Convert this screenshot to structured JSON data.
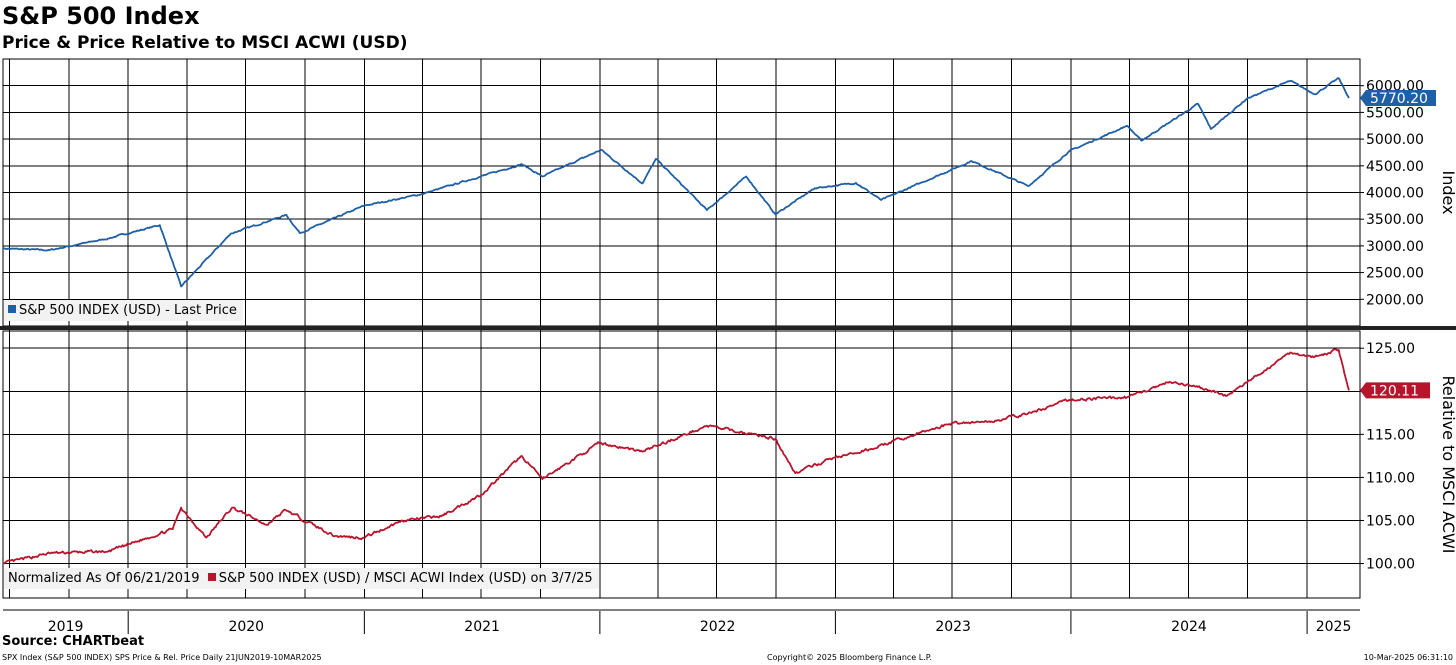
{
  "header": {
    "title": "S&P 500 Index",
    "subtitle": "Price & Price Relative to MSCI ACWI (USD)"
  },
  "footer": {
    "source": "Source: CHARTbeat",
    "left": "SPX Index (S&P 500 INDEX) SPS Price & Rel. Price  Daily 21JUN2019-10MAR2025",
    "center": "Copyright© 2025 Bloomberg Finance L.P.",
    "right": "10-Mar-2025 06:31:10"
  },
  "colors": {
    "price": "#1f5fa5",
    "relative": "#b8142b",
    "grid": "#000000",
    "legend_bg": "#f2f2f2"
  },
  "chart_data": [
    {
      "type": "line",
      "panel": "top",
      "ylabel": "Index",
      "ylim": [
        1500,
        6500
      ],
      "yticks": [
        "2000.00",
        "2500.00",
        "3000.00",
        "3500.00",
        "4000.00",
        "4500.00",
        "5000.00",
        "5500.00",
        "6000.00"
      ],
      "last_value": "5770.20",
      "legend": "S&P 500 INDEX (USD) - Last Price",
      "x": [
        "2019-06-21",
        "2019-09-01",
        "2019-12-01",
        "2020-02-19",
        "2020-03-23",
        "2020-06-08",
        "2020-09-02",
        "2020-09-23",
        "2020-12-31",
        "2021-03-31",
        "2021-06-30",
        "2021-09-02",
        "2021-10-04",
        "2022-01-03",
        "2022-03-08",
        "2022-03-29",
        "2022-06-16",
        "2022-08-16",
        "2022-09-30",
        "2022-11-30",
        "2023-02-02",
        "2023-03-13",
        "2023-07-31",
        "2023-10-27",
        "2023-12-29",
        "2024-03-28",
        "2024-04-19",
        "2024-07-16",
        "2024-08-05",
        "2024-09-30",
        "2024-12-06",
        "2025-01-13",
        "2025-02-19",
        "2025-03-07"
      ],
      "values": [
        2950,
        2920,
        3140,
        3390,
        2240,
        3230,
        3580,
        3240,
        3750,
        3970,
        4300,
        4530,
        4300,
        4800,
        4170,
        4630,
        3670,
        4300,
        3590,
        4080,
        4180,
        3860,
        4590,
        4120,
        4770,
        5250,
        4970,
        5660,
        5190,
        5760,
        6090,
        5840,
        6140,
        5770
      ]
    },
    {
      "type": "line",
      "panel": "bottom",
      "ylabel": "Relative to MSCI ACWI",
      "ylim": [
        96,
        127
      ],
      "yticks": [
        "100.00",
        "105.00",
        "110.00",
        "115.00",
        "120.00",
        "125.00"
      ],
      "last_value": "120.11",
      "normalized_note": "Normalized As Of 06/21/2019",
      "legend": "S&P 500 INDEX (USD) / MSCI ACWI Index (USD) on 3/7/25",
      "x": [
        "2019-06-21",
        "2019-09-01",
        "2019-12-01",
        "2020-03-10",
        "2020-03-23",
        "2020-05-01",
        "2020-06-10",
        "2020-08-03",
        "2020-09-01",
        "2020-11-16",
        "2020-12-31",
        "2021-03-01",
        "2021-04-30",
        "2021-07-01",
        "2021-09-02",
        "2021-10-04",
        "2021-12-31",
        "2022-03-08",
        "2022-06-16",
        "2022-09-30",
        "2022-10-31",
        "2022-12-30",
        "2023-02-02",
        "2023-06-30",
        "2023-08-31",
        "2023-11-01",
        "2023-12-29",
        "2024-03-28",
        "2024-05-31",
        "2024-07-16",
        "2024-08-30",
        "2024-09-30",
        "2024-12-06",
        "2025-01-13",
        "2025-02-19",
        "2025-03-07"
      ],
      "values": [
        100.0,
        101.2,
        101.4,
        104.0,
        106.5,
        103.0,
        106.5,
        104.5,
        106.2,
        103.2,
        103.0,
        105.0,
        105.5,
        108.0,
        112.5,
        109.8,
        114.0,
        113.0,
        116.0,
        114.5,
        110.5,
        112.3,
        112.8,
        116.3,
        116.5,
        117.5,
        119.0,
        119.3,
        121.0,
        120.5,
        119.5,
        121.0,
        124.5,
        124.0,
        124.8,
        120.1
      ]
    }
  ],
  "x_axis": {
    "years": [
      "2019",
      "2020",
      "2021",
      "2022",
      "2023",
      "2024",
      "2025"
    ],
    "range": [
      "2019-06-21",
      "2025-03-24"
    ]
  }
}
